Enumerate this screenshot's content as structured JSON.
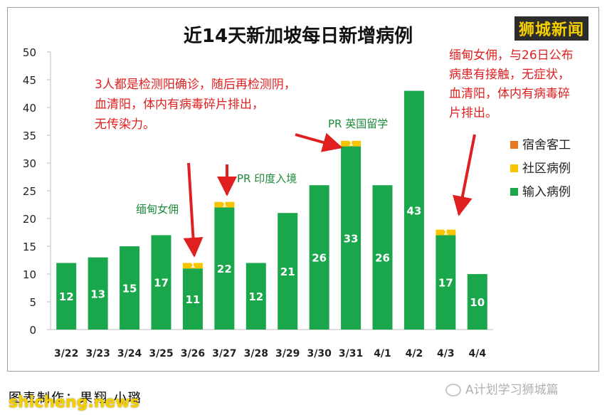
{
  "brand": "狮城新闻",
  "footer": {
    "credit": "图表制作：果翔 小璐",
    "site": "shicheng.news",
    "wechat": "A计划学习狮城篇",
    "wechat_icon": "wechat-icon"
  },
  "colors": {
    "imported": "#1aa64a",
    "community": "#f8c400",
    "dormitory": "#e87722",
    "annotation_red": "#e02020",
    "annotation_green": "#1e8a3a"
  },
  "chart_data": {
    "type": "bar",
    "stacked": true,
    "title": "近14天新加坡每日新增病例",
    "categories": [
      "3/22",
      "3/23",
      "3/24",
      "3/25",
      "3/26",
      "3/27",
      "3/28",
      "3/29",
      "3/30",
      "3/31",
      "4/1",
      "4/2",
      "4/3",
      "4/4"
    ],
    "series": [
      {
        "name": "输入病例",
        "values": [
          12,
          13,
          15,
          17,
          11,
          22,
          12,
          21,
          26,
          33,
          26,
          43,
          17,
          10
        ]
      },
      {
        "name": "社区病例",
        "values": [
          0,
          0,
          0,
          0,
          1,
          1,
          0,
          0,
          0,
          1,
          0,
          0,
          1,
          0
        ]
      },
      {
        "name": "宿舍客工",
        "values": [
          0,
          0,
          0,
          0,
          0,
          0,
          0,
          0,
          0,
          0,
          0,
          0,
          0,
          0
        ]
      }
    ],
    "ylim": [
      0,
      50
    ],
    "yticks": [
      0,
      5,
      10,
      15,
      20,
      25,
      30,
      35,
      40,
      45,
      50
    ],
    "grid": false,
    "legend_position": "right",
    "legend_order": [
      "宿舍客工",
      "社区病例",
      "输入病例"
    ],
    "annotations": {
      "note_326": "3人都是检测阳确诊，随后再检测阴，血清阳，体内有病毒碎片排出，无传染力。",
      "label_326": "缅甸女佣",
      "label_327": "PR 印度入境",
      "label_331": "PR 英国留学",
      "note_43": "缅甸女佣，与26日公布病患有接触，无症状，血清阳，体内有病毒碎片排出。"
    }
  }
}
